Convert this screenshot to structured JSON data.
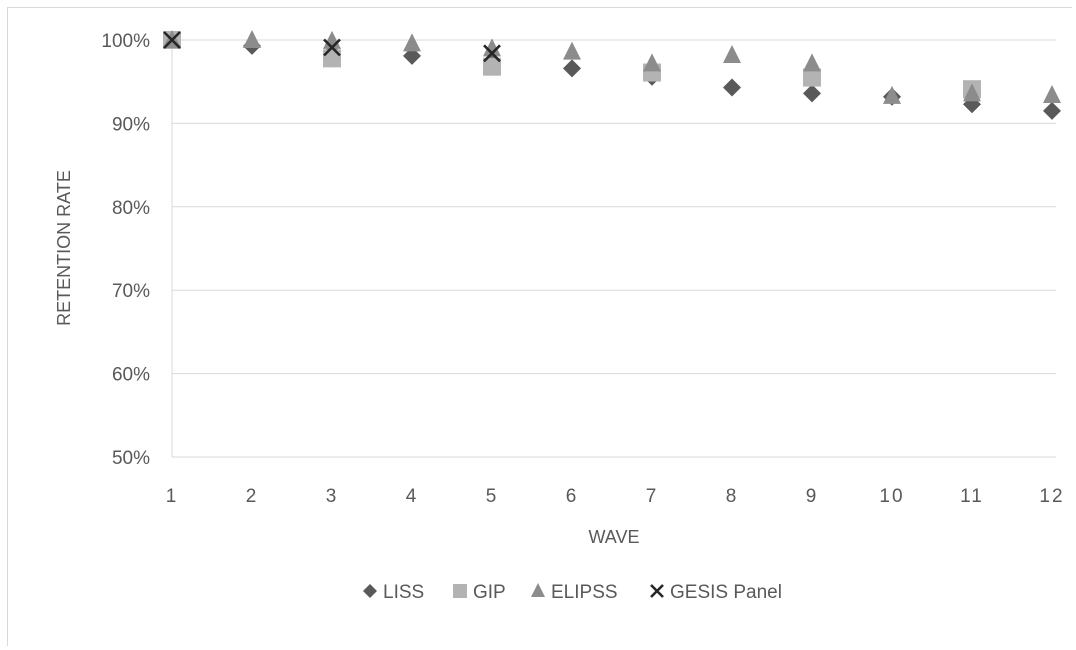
{
  "chart_data": {
    "type": "scatter",
    "title": "",
    "xlabel": "WAVE",
    "ylabel": "RETENTION RATE",
    "x": [
      1,
      2,
      3,
      4,
      5,
      6,
      7,
      8,
      9,
      10,
      11,
      12
    ],
    "x_tick_labels": [
      "1",
      "2",
      "3",
      "4",
      "5",
      "6",
      "7",
      "8",
      "9",
      "10",
      "11",
      "12"
    ],
    "y_tick_labels": [
      "50%",
      "60%",
      "70%",
      "80%",
      "90%",
      "100%"
    ],
    "y_ticks": [
      50,
      60,
      70,
      80,
      90,
      100
    ],
    "ylim": [
      50,
      100
    ],
    "grid": true,
    "legend_position": "bottom",
    "series": [
      {
        "name": "LISS",
        "marker": "diamond",
        "color": "#595959",
        "x": [
          1,
          2,
          3,
          4,
          5,
          6,
          7,
          8,
          9,
          10,
          11,
          12
        ],
        "values": [
          100,
          99.3,
          98.5,
          98.1,
          97.3,
          96.6,
          95.6,
          94.3,
          93.6,
          93.2,
          92.3,
          91.5
        ]
      },
      {
        "name": "GIP",
        "marker": "square",
        "color": "#b3b3b3",
        "x": [
          1,
          3,
          5,
          7,
          9,
          11
        ],
        "values": [
          100,
          97.8,
          96.8,
          96.1,
          95.5,
          94.1
        ]
      },
      {
        "name": "ELIPSS",
        "marker": "triangle",
        "color": "#8c8c8c",
        "x": [
          1,
          2,
          3,
          4,
          5,
          6,
          7,
          8,
          9,
          10,
          11,
          12
        ],
        "values": [
          100,
          100,
          99.9,
          99.6,
          99.0,
          98.6,
          97.2,
          98.2,
          97.2,
          93.3,
          93.6,
          93.4
        ]
      },
      {
        "name": "GESIS Panel",
        "marker": "x",
        "color": "#262626",
        "x": [
          1,
          3,
          5
        ],
        "values": [
          100,
          99.1,
          98.4
        ]
      }
    ]
  }
}
